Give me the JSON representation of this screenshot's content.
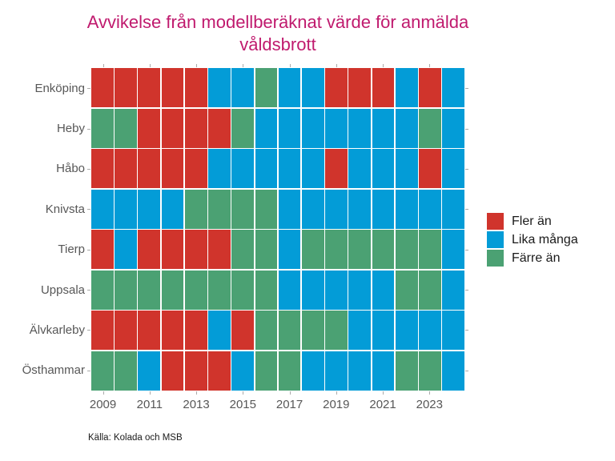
{
  "title": {
    "line1": "Avvikelse från modellberäknat värde för anmälda",
    "line2": "våldsbrott",
    "color": "#c01a6e"
  },
  "source": "Källa: Kolada och MSB",
  "chart_data": {
    "type": "heatmap",
    "title": "Avvikelse från modellberäknat värde för anmälda våldsbrott",
    "x": [
      2009,
      2010,
      2011,
      2012,
      2013,
      2014,
      2015,
      2016,
      2017,
      2018,
      2019,
      2020,
      2021,
      2022,
      2023,
      2024
    ],
    "x_tick_labels": [
      "2009",
      "2011",
      "2013",
      "2015",
      "2017",
      "2019",
      "2021",
      "2023"
    ],
    "rows": [
      "Enköping",
      "Heby",
      "Håbo",
      "Knivsta",
      "Tierp",
      "Uppsala",
      "Älvkarleby",
      "Östhammar"
    ],
    "legend": [
      {
        "code": "fler",
        "label": "Fler än",
        "color": "#d0342c"
      },
      {
        "code": "lika",
        "label": "Lika många",
        "color": "#039cd7"
      },
      {
        "code": "farre",
        "label": "Färre än",
        "color": "#4ba173"
      }
    ],
    "legend_position": "right",
    "grid_lines": "white",
    "grid": [
      [
        "fler",
        "fler",
        "fler",
        "fler",
        "fler",
        "lika",
        "lika",
        "farre",
        "lika",
        "lika",
        "fler",
        "fler",
        "fler",
        "lika",
        "fler",
        "lika"
      ],
      [
        "farre",
        "farre",
        "fler",
        "fler",
        "fler",
        "fler",
        "farre",
        "lika",
        "lika",
        "lika",
        "lika",
        "lika",
        "lika",
        "lika",
        "farre",
        "lika"
      ],
      [
        "fler",
        "fler",
        "fler",
        "fler",
        "fler",
        "lika",
        "lika",
        "lika",
        "lika",
        "lika",
        "fler",
        "lika",
        "lika",
        "lika",
        "fler",
        "lika"
      ],
      [
        "lika",
        "lika",
        "lika",
        "lika",
        "farre",
        "farre",
        "farre",
        "farre",
        "lika",
        "lika",
        "lika",
        "lika",
        "lika",
        "lika",
        "lika",
        "lika"
      ],
      [
        "fler",
        "lika",
        "fler",
        "fler",
        "fler",
        "fler",
        "farre",
        "farre",
        "lika",
        "farre",
        "farre",
        "farre",
        "farre",
        "farre",
        "farre",
        "lika"
      ],
      [
        "farre",
        "farre",
        "farre",
        "farre",
        "farre",
        "farre",
        "farre",
        "farre",
        "lika",
        "lika",
        "lika",
        "lika",
        "lika",
        "farre",
        "farre",
        "lika"
      ],
      [
        "fler",
        "fler",
        "fler",
        "fler",
        "fler",
        "lika",
        "fler",
        "farre",
        "farre",
        "farre",
        "farre",
        "lika",
        "lika",
        "lika",
        "lika",
        "lika"
      ],
      [
        "farre",
        "farre",
        "lika",
        "fler",
        "fler",
        "fler",
        "lika",
        "farre",
        "farre",
        "lika",
        "lika",
        "lika",
        "lika",
        "farre",
        "farre",
        "lika"
      ]
    ]
  }
}
